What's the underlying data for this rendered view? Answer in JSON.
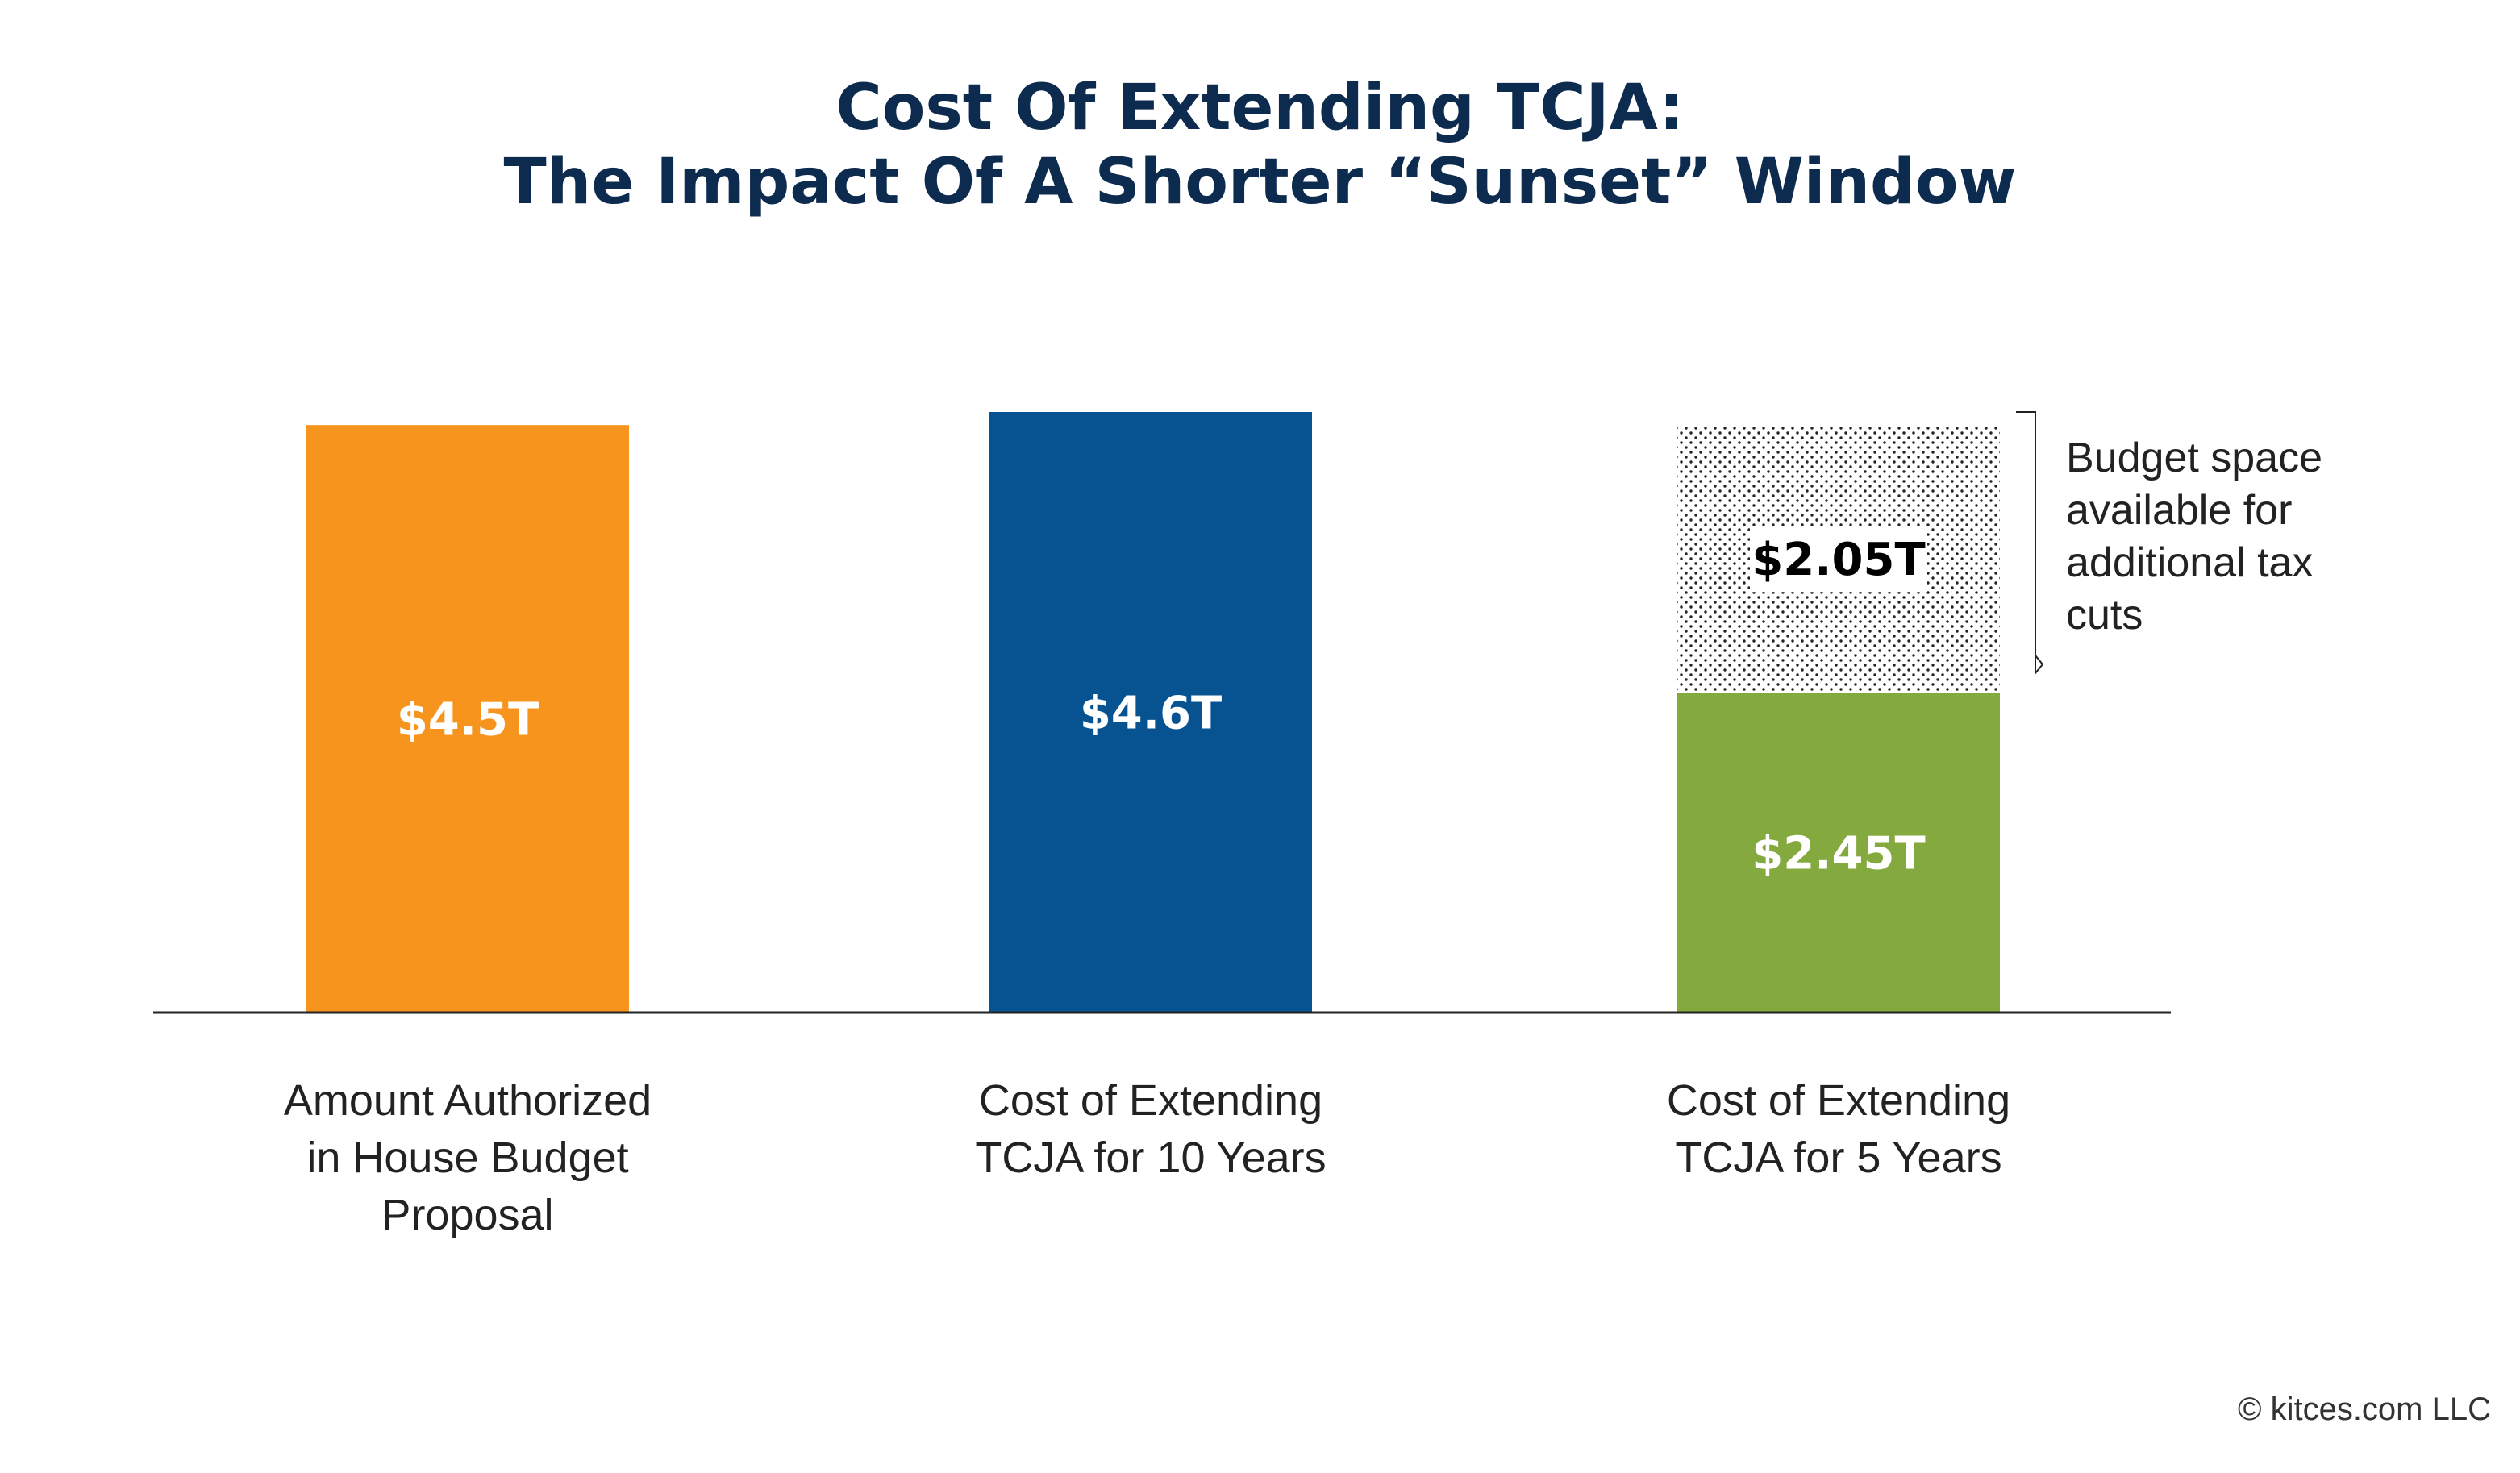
{
  "chart_data": {
    "type": "bar",
    "title": "Cost Of Extending TCJA:",
    "subtitle": "The Impact Of A Shorter “Sunset” Window",
    "xlabel": "",
    "ylabel": "",
    "ylim": [
      0,
      4.6
    ],
    "grid": false,
    "categories": [
      [
        "Amount Authorized",
        "in House Budget",
        "Proposal"
      ],
      [
        "Cost of Extending",
        "TCJA for 10 Years"
      ],
      [
        "Cost of Extending",
        "TCJA for 5 Years"
      ]
    ],
    "series": [
      {
        "values": [
          4.5,
          4.6,
          2.45
        ],
        "labels": [
          "$4.5T",
          "$4.6T",
          "$2.45T"
        ],
        "colors": [
          "#f7941d",
          "#075391",
          "#84a93f"
        ]
      },
      {
        "values": [
          0,
          0,
          2.05
        ],
        "labels": [
          "",
          "",
          "$2.05T"
        ],
        "pattern": "dotted"
      }
    ],
    "annotation": [
      "Budget space",
      "available for",
      "additional tax",
      "cuts"
    ]
  },
  "footer": {
    "copyright": "© kitces.com LLC"
  },
  "colors": {
    "title": "#0d2b4e",
    "axis": "#222222",
    "dot": "#222222",
    "label_white": "#ffffff",
    "label_dark": "#000000"
  }
}
